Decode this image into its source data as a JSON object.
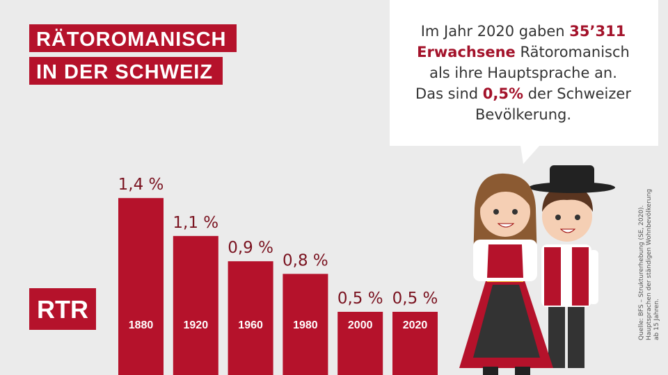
{
  "title_lines": [
    "RÄTOROMANISCH",
    "IN DER SCHWEIZ"
  ],
  "logo": "RTR",
  "callout": [
    [
      {
        "text": "Im Jahr 2020 gaben "
      },
      {
        "text": "35’311",
        "bold": true
      }
    ],
    [
      {
        "text": "Erwachsene",
        "bold": true
      },
      {
        "text": " Rätoromanisch"
      }
    ],
    [
      {
        "text": "als ihre Hauptsprache an."
      }
    ],
    [
      {
        "text": "Das sind "
      },
      {
        "text": "0,5%",
        "bold": true
      },
      {
        "text": " der Schweizer"
      }
    ],
    [
      {
        "text": "Bevölkerung."
      }
    ]
  ],
  "source": [
    "Quelle: BFS – Strukturerhebung (SE, 2020).",
    "Hauptsprachen der ständigen Wohnbevölkerung",
    "ab 15 Jahren."
  ],
  "chart_data": {
    "type": "bar",
    "categories": [
      "1880",
      "1920",
      "1960",
      "1980",
      "2000",
      "2020"
    ],
    "values": [
      1.4,
      1.1,
      0.9,
      0.8,
      0.5,
      0.5
    ],
    "value_labels": [
      "1,4 %",
      "1,1 %",
      "0,9 %",
      "0,8 %",
      "0,5 %",
      "0,5 %"
    ],
    "color": "#b5122b"
  }
}
